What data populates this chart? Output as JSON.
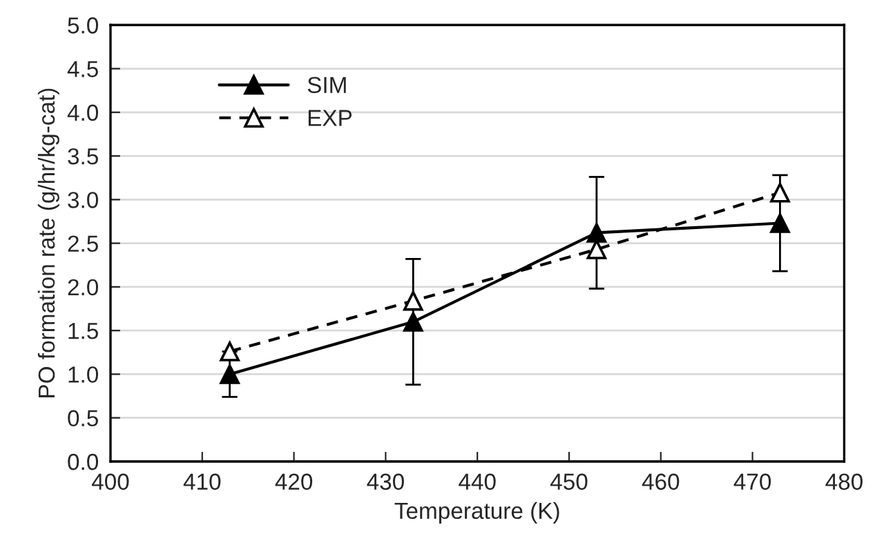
{
  "chart_data": {
    "type": "line",
    "xlabel": "Temperature (K)",
    "ylabel": "PO formation rate (g/hr/kg-cat)",
    "x": [
      413,
      433,
      453,
      473
    ],
    "series": [
      {
        "name": "SIM",
        "color": "#000000",
        "values": [
          1.0,
          1.6,
          2.62,
          2.73
        ],
        "errors": [
          0.26,
          0.72,
          0.64,
          0.55
        ],
        "marker": "triangle",
        "line_style": "solid"
      },
      {
        "name": "EXP",
        "color": "#000000",
        "values": [
          1.26,
          1.84,
          2.43,
          3.08
        ],
        "marker": "triangle",
        "line_style": "dashed"
      }
    ],
    "xlim": [
      400,
      480
    ],
    "xticks": [
      400,
      410,
      420,
      430,
      440,
      450,
      460,
      470,
      480
    ],
    "ylim": [
      0,
      5
    ],
    "yticks": [
      {
        "value": 0,
        "label": "0.0"
      },
      {
        "value": 0.5,
        "label": "0.5"
      },
      {
        "value": 1,
        "label": "1.0"
      },
      {
        "value": 1.5,
        "label": "1.5"
      },
      {
        "value": 2,
        "label": "2.0"
      },
      {
        "value": 2.5,
        "label": "2.5"
      },
      {
        "value": 3,
        "label": "3.0"
      },
      {
        "value": 3.5,
        "label": "3.5"
      },
      {
        "value": 4,
        "label": "4.0"
      },
      {
        "value": 4.5,
        "label": "4.5"
      },
      {
        "value": 5,
        "label": "5.0"
      }
    ],
    "grid": "y",
    "legend": "top left"
  }
}
